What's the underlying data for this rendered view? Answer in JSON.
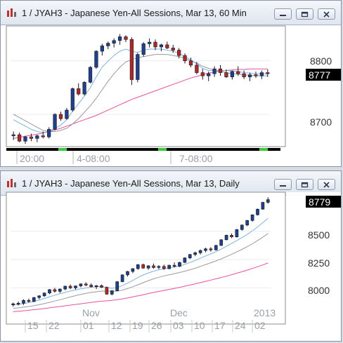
{
  "windows": [
    {
      "title": "1 / JYAH3 - Japanese Yen-All Sessions, Mar 13, 60 Min",
      "price_ticks": [
        "8800",
        "8700"
      ],
      "current_price": "8777",
      "time_labels": [
        "20:00",
        "4-08:00",
        "7-08:00"
      ]
    },
    {
      "title": "1 / JYAH3 - Japanese Yen-All Sessions, Mar 13, Daily",
      "price_ticks": [
        "8500",
        "8250",
        "8000"
      ],
      "current_price": "8779",
      "month_labels": [
        "Nov",
        "Dec",
        "2013"
      ],
      "day_labels": [
        "15",
        "22",
        "01",
        "12",
        "19",
        "26",
        "03",
        "10",
        "17",
        "24",
        "02"
      ]
    }
  ],
  "colors": {
    "up_candle": "#1f3f8f",
    "down_candle": "#b0282c",
    "ma_fast": "#7fb3e0",
    "ma_slow": "#9a9a9a",
    "ma_long": "#e8509a",
    "current_price_bg": "#000000",
    "session_active": "#3ec93e"
  },
  "chart_data": [
    {
      "type": "candlestick",
      "title": "1 / JYAH3 - Japanese Yen-All Sessions, Mar 13, 60 Min",
      "ylim": [
        8645,
        8860
      ],
      "ticks": [
        8700,
        8800
      ],
      "current": 8777,
      "x_labels": [
        "20:00",
        "4-08:00",
        "7-08:00"
      ],
      "ohlc": [
        [
          8660,
          8668,
          8652,
          8662
        ],
        [
          8662,
          8666,
          8648,
          8650
        ],
        [
          8650,
          8660,
          8645,
          8658
        ],
        [
          8658,
          8664,
          8650,
          8655
        ],
        [
          8655,
          8662,
          8648,
          8660
        ],
        [
          8660,
          8668,
          8655,
          8658
        ],
        [
          8658,
          8676,
          8655,
          8672
        ],
        [
          8672,
          8702,
          8670,
          8700
        ],
        [
          8700,
          8705,
          8688,
          8692
        ],
        [
          8692,
          8712,
          8690,
          8708
        ],
        [
          8708,
          8750,
          8705,
          8748
        ],
        [
          8748,
          8758,
          8735,
          8738
        ],
        [
          8738,
          8762,
          8735,
          8760
        ],
        [
          8760,
          8790,
          8758,
          8788
        ],
        [
          8788,
          8820,
          8785,
          8818
        ],
        [
          8818,
          8832,
          8810,
          8828
        ],
        [
          8828,
          8836,
          8822,
          8833
        ],
        [
          8833,
          8842,
          8825,
          8838
        ],
        [
          8838,
          8850,
          8830,
          8845
        ],
        [
          8845,
          8848,
          8835,
          8840
        ],
        [
          8840,
          8844,
          8755,
          8765
        ],
        [
          8765,
          8815,
          8760,
          8812
        ],
        [
          8812,
          8835,
          8808,
          8832
        ],
        [
          8832,
          8842,
          8825,
          8835
        ],
        [
          8835,
          8840,
          8820,
          8826
        ],
        [
          8826,
          8832,
          8818,
          8830
        ],
        [
          8830,
          8836,
          8822,
          8824
        ],
        [
          8824,
          8830,
          8815,
          8820
        ],
        [
          8820,
          8824,
          8805,
          8810
        ],
        [
          8810,
          8814,
          8795,
          8800
        ],
        [
          8800,
          8806,
          8788,
          8792
        ],
        [
          8792,
          8798,
          8775,
          8778
        ],
        [
          8778,
          8785,
          8765,
          8772
        ],
        [
          8772,
          8780,
          8762,
          8776
        ],
        [
          8776,
          8790,
          8770,
          8785
        ],
        [
          8785,
          8792,
          8772,
          8778
        ],
        [
          8778,
          8784,
          8768,
          8770
        ],
        [
          8770,
          8782,
          8765,
          8780
        ],
        [
          8780,
          8790,
          8772,
          8776
        ],
        [
          8776,
          8782,
          8766,
          8770
        ],
        [
          8770,
          8778,
          8762,
          8774
        ],
        [
          8774,
          8780,
          8768,
          8772
        ],
        [
          8772,
          8782,
          8766,
          8778
        ],
        [
          8778,
          8784,
          8770,
          8777
        ]
      ],
      "ma_fast": [
        8690,
        8684,
        8678,
        8672,
        8668,
        8666,
        8668,
        8674,
        8680,
        8690,
        8706,
        8720,
        8734,
        8750,
        8770,
        8788,
        8800,
        8810,
        8818,
        8822,
        8818,
        8816,
        8820,
        8822,
        8822,
        8822,
        8820,
        8818,
        8814,
        8808,
        8802,
        8794,
        8786,
        8782,
        8782,
        8782,
        8782,
        8781,
        8780,
        8778,
        8777,
        8776,
        8776,
        8776
      ],
      "ma_slow": [
        8700,
        8694,
        8688,
        8682,
        8676,
        8670,
        8668,
        8668,
        8670,
        8674,
        8682,
        8692,
        8704,
        8716,
        8730,
        8746,
        8762,
        8776,
        8788,
        8798,
        8802,
        8806,
        8808,
        8810,
        8812,
        8812,
        8812,
        8810,
        8808,
        8805,
        8800,
        8796,
        8790,
        8786,
        8783,
        8780,
        8778,
        8776,
        8775,
        8774,
        8773,
        8772,
        8772,
        8772
      ],
      "ma_long": [
        8655,
        8657,
        8659,
        8661,
        8663,
        8665,
        8668,
        8671,
        8674,
        8678,
        8682,
        8686,
        8690,
        8694,
        8698,
        8703,
        8708,
        8713,
        8718,
        8723,
        8728,
        8732,
        8736,
        8740,
        8744,
        8748,
        8752,
        8756,
        8760,
        8764,
        8768,
        8771,
        8774,
        8777,
        8779,
        8781,
        8782,
        8783,
        8784,
        8784,
        8785,
        8785,
        8785,
        8785
      ]
    },
    {
      "type": "candlestick",
      "title": "1 / JYAH3 - Japanese Yen-All Sessions, Mar 13, Daily",
      "ylim": [
        7780,
        8820
      ],
      "ticks": [
        8000,
        8250,
        8500
      ],
      "current": 8779,
      "x_labels": [
        "15",
        "22",
        "01",
        "12",
        "19",
        "26",
        "03",
        "10",
        "17",
        "24",
        "02"
      ],
      "month_labels": [
        "Nov",
        "Dec",
        "2013"
      ],
      "ohlc": [
        [
          7850,
          7870,
          7835,
          7860
        ],
        [
          7860,
          7880,
          7845,
          7865
        ],
        [
          7865,
          7900,
          7850,
          7890
        ],
        [
          7890,
          7905,
          7870,
          7880
        ],
        [
          7880,
          7920,
          7875,
          7915
        ],
        [
          7915,
          7935,
          7900,
          7930
        ],
        [
          7930,
          7960,
          7920,
          7955
        ],
        [
          7955,
          7990,
          7945,
          7985
        ],
        [
          7985,
          8000,
          7960,
          7970
        ],
        [
          7970,
          7995,
          7955,
          7990
        ],
        [
          7990,
          8020,
          7980,
          8015
        ],
        [
          8015,
          8030,
          7990,
          8000
        ],
        [
          8000,
          8020,
          7985,
          8018
        ],
        [
          8018,
          8040,
          8005,
          8035
        ],
        [
          8035,
          8050,
          8015,
          8025
        ],
        [
          8025,
          8040,
          8005,
          8010
        ],
        [
          8010,
          8025,
          7990,
          8020
        ],
        [
          8020,
          8030,
          8000,
          8005
        ],
        [
          8005,
          8012,
          7940,
          7945
        ],
        [
          7945,
          7980,
          7935,
          7975
        ],
        [
          7975,
          8060,
          7970,
          8055
        ],
        [
          8055,
          8120,
          8050,
          8115
        ],
        [
          8115,
          8150,
          8100,
          8145
        ],
        [
          8145,
          8175,
          8130,
          8170
        ],
        [
          8170,
          8210,
          8160,
          8205
        ],
        [
          8205,
          8215,
          8170,
          8175
        ],
        [
          8175,
          8200,
          8160,
          8195
        ],
        [
          8195,
          8215,
          8170,
          8180
        ],
        [
          8180,
          8200,
          8165,
          8190
        ],
        [
          8190,
          8205,
          8160,
          8170
        ],
        [
          8170,
          8205,
          8165,
          8200
        ],
        [
          8200,
          8225,
          8180,
          8190
        ],
        [
          8190,
          8230,
          8185,
          8225
        ],
        [
          8225,
          8270,
          8220,
          8265
        ],
        [
          8265,
          8300,
          8255,
          8295
        ],
        [
          8295,
          8320,
          8280,
          8310
        ],
        [
          8310,
          8340,
          8295,
          8330
        ],
        [
          8330,
          8355,
          8315,
          8345
        ],
        [
          8345,
          8360,
          8320,
          8335
        ],
        [
          8335,
          8380,
          8330,
          8375
        ],
        [
          8375,
          8430,
          8370,
          8425
        ],
        [
          8425,
          8470,
          8420,
          8465
        ],
        [
          8465,
          8480,
          8440,
          8450
        ],
        [
          8450,
          8520,
          8445,
          8515
        ],
        [
          8515,
          8560,
          8505,
          8555
        ],
        [
          8555,
          8600,
          8545,
          8595
        ],
        [
          8595,
          8650,
          8585,
          8645
        ],
        [
          8645,
          8700,
          8640,
          8695
        ],
        [
          8695,
          8760,
          8690,
          8755
        ],
        [
          8755,
          8800,
          8745,
          8779
        ]
      ],
      "ma_fast": [
        7850,
        7855,
        7862,
        7870,
        7880,
        7892,
        7906,
        7922,
        7936,
        7948,
        7960,
        7972,
        7982,
        7992,
        8000,
        8006,
        8010,
        8012,
        8004,
        7996,
        8004,
        8020,
        8042,
        8066,
        8092,
        8114,
        8132,
        8148,
        8160,
        8168,
        8176,
        8184,
        8194,
        8208,
        8224,
        8242,
        8262,
        8282,
        8300,
        8320,
        8342,
        8368,
        8392,
        8418,
        8444,
        8472,
        8504,
        8538,
        8576,
        8614
      ],
      "ma_slow": [
        7820,
        7824,
        7830,
        7836,
        7844,
        7852,
        7862,
        7872,
        7884,
        7896,
        7908,
        7920,
        7932,
        7942,
        7952,
        7960,
        7966,
        7972,
        7972,
        7970,
        7972,
        7980,
        7994,
        8010,
        8028,
        8046,
        8064,
        8080,
        8094,
        8106,
        8116,
        8126,
        8136,
        8148,
        8160,
        8174,
        8190,
        8206,
        8222,
        8238,
        8256,
        8276,
        8296,
        8318,
        8340,
        8364,
        8390,
        8418,
        8448,
        8480
      ],
      "ma_long": [
        7790,
        7794,
        7798,
        7803,
        7808,
        7813,
        7818,
        7824,
        7830,
        7836,
        7842,
        7848,
        7854,
        7860,
        7866,
        7872,
        7878,
        7883,
        7886,
        7890,
        7896,
        7903,
        7912,
        7921,
        7930,
        7940,
        7950,
        7960,
        7969,
        7978,
        7987,
        7996,
        8005,
        8015,
        8025,
        8036,
        8047,
        8058,
        8069,
        8080,
        8092,
        8104,
        8117,
        8130,
        8143,
        8157,
        8172,
        8187,
        8203,
        8220
      ]
    }
  ]
}
